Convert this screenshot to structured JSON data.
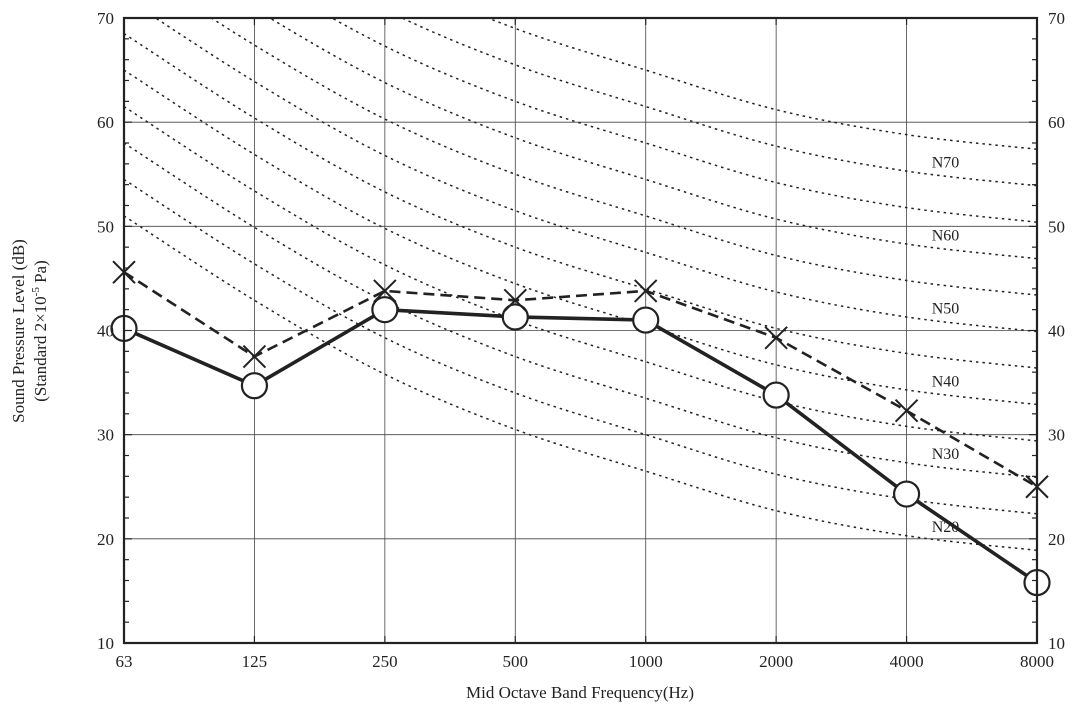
{
  "chart_data": {
    "type": "line",
    "xlabel": "Mid Octave Band Frequency(Hz)",
    "ylabel_line1": "Sound Pressure Level (dB)",
    "ylabel_line2_pre": "(Standard 2×10",
    "ylabel_line2_sup": "-5",
    "ylabel_line2_post": " Pa)",
    "categories": [
      "63",
      "125",
      "250",
      "500",
      "1000",
      "2000",
      "4000",
      "8000"
    ],
    "ylim": [
      10,
      70
    ],
    "yticks": [
      10,
      20,
      30,
      40,
      50,
      60,
      70
    ],
    "y_ticks_right": true,
    "grid": true,
    "series": [
      {
        "style": "solid",
        "marker": "circle",
        "values": [
          40.2,
          34.7,
          42.0,
          41.3,
          41.0,
          33.8,
          24.3,
          15.8
        ]
      },
      {
        "style": "dashed",
        "marker": "x",
        "values": [
          45.6,
          37.5,
          43.8,
          42.9,
          43.8,
          39.3,
          32.3,
          25.0
        ]
      }
    ],
    "nc_curves": [
      {
        "label": "N20",
        "values": [
          51.0,
          42.9,
          35.8,
          30.5,
          26.5,
          22.7,
          20.3,
          18.9
        ]
      },
      {
        "values": [
          54.5,
          46.4,
          39.3,
          34.0,
          30.0,
          26.2,
          23.8,
          22.4
        ]
      },
      {
        "label": "N30",
        "values": [
          58.0,
          49.9,
          42.8,
          37.5,
          33.5,
          29.7,
          27.3,
          25.9
        ]
      },
      {
        "values": [
          61.5,
          53.4,
          46.3,
          41.0,
          37.0,
          33.2,
          30.8,
          29.4
        ]
      },
      {
        "label": "N40",
        "values": [
          65.0,
          56.9,
          49.8,
          44.5,
          40.5,
          36.7,
          34.3,
          32.9
        ]
      },
      {
        "values": [
          68.5,
          60.4,
          53.3,
          48.0,
          44.0,
          40.2,
          37.8,
          36.4
        ]
      },
      {
        "label": "N50",
        "values": [
          72.0,
          63.9,
          56.8,
          51.5,
          47.5,
          43.7,
          41.3,
          39.9
        ]
      },
      {
        "values": [
          75.5,
          67.4,
          60.3,
          55.0,
          51.0,
          47.2,
          44.8,
          43.4
        ]
      },
      {
        "label": "N60",
        "values": [
          79.0,
          70.9,
          63.8,
          58.5,
          54.5,
          50.7,
          48.3,
          46.9
        ]
      },
      {
        "values": [
          82.5,
          74.4,
          67.3,
          62.0,
          58.0,
          54.2,
          51.8,
          50.4
        ]
      },
      {
        "label": "N70",
        "values": [
          86.0,
          77.9,
          70.8,
          65.5,
          61.5,
          57.7,
          55.3,
          53.9
        ]
      },
      {
        "values": [
          89.5,
          81.4,
          74.3,
          69.0,
          65.0,
          61.2,
          58.8,
          57.4
        ]
      }
    ]
  }
}
